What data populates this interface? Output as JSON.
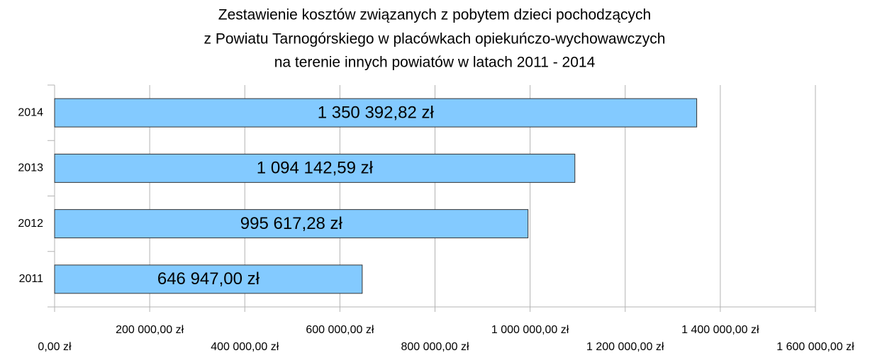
{
  "chart_data": {
    "type": "bar",
    "orientation": "horizontal",
    "title": [
      "Zestawienie kosztów związanych z pobytem dzieci pochodzących",
      "z Powiatu Tarnogórskiego w placówkach opiekuńczo-wychowawczych",
      "na terenie innych powiatów w latach 2011 - 2014"
    ],
    "categories": [
      "2011",
      "2012",
      "2013",
      "2014"
    ],
    "values": [
      646947.0,
      995617.28,
      1094142.59,
      1350392.82
    ],
    "value_labels": [
      "646 947,00 zł",
      "995 617,28 zł",
      "1 094 142,59 zł",
      "1 350 392,82 zł"
    ],
    "color": "#83caff",
    "xlim": [
      0,
      1600000
    ],
    "xticks": [
      {
        "value": 0,
        "label": "0,00 zł"
      },
      {
        "value": 200000,
        "label": "200 000,00 zł"
      },
      {
        "value": 400000,
        "label": "400 000,00 zł"
      },
      {
        "value": 600000,
        "label": "600 000,00 zł"
      },
      {
        "value": 800000,
        "label": "800 000,00 zł"
      },
      {
        "value": 1000000,
        "label": "1 000 000,00 zł"
      },
      {
        "value": 1200000,
        "label": "1 200 000,00 zł"
      },
      {
        "value": 1400000,
        "label": "1 400 000,00 zł"
      },
      {
        "value": 1600000,
        "label": "1 600 000,00 zł"
      }
    ],
    "grid": true
  }
}
